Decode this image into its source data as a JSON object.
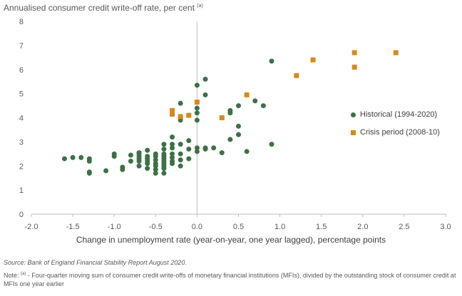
{
  "chart_data": {
    "type": "scatter",
    "title": "Annualised consumer credit write-off rate, per cent",
    "title_note_marker": "(a)",
    "xlabel": "Change in unemployment rate (year-on-year, one year lagged), percentage points",
    "ylabel": "",
    "xlim": [
      -2.0,
      3.0
    ],
    "ylim": [
      0,
      8
    ],
    "xticks": [
      "-2.0",
      "-1.5",
      "-1.0",
      "-0.5",
      "0.0",
      "0.5",
      "1.0",
      "1.5",
      "2.0",
      "2.5",
      "3.0"
    ],
    "yticks": [
      "0",
      "1",
      "2",
      "3",
      "4",
      "5",
      "6",
      "7",
      "8"
    ],
    "grid": false,
    "legend_position": "right",
    "series": [
      {
        "name": "Historical (1994-2020)",
        "marker": "circle",
        "color": "#3e7047",
        "points": [
          [
            -1.6,
            2.3
          ],
          [
            -1.5,
            2.35
          ],
          [
            -1.4,
            2.35
          ],
          [
            -1.3,
            2.3
          ],
          [
            -1.3,
            2.2
          ],
          [
            -1.3,
            1.75
          ],
          [
            -1.3,
            1.7
          ],
          [
            -1.1,
            1.8
          ],
          [
            -1.0,
            2.5
          ],
          [
            -1.0,
            2.4
          ],
          [
            -0.9,
            1.95
          ],
          [
            -0.9,
            1.85
          ],
          [
            -0.8,
            2.45
          ],
          [
            -0.8,
            2.2
          ],
          [
            -0.7,
            2.5
          ],
          [
            -0.7,
            2.4
          ],
          [
            -0.7,
            2.3
          ],
          [
            -0.7,
            2.2
          ],
          [
            -0.7,
            2.0
          ],
          [
            -0.7,
            2.55
          ],
          [
            -0.6,
            2.65
          ],
          [
            -0.6,
            2.4
          ],
          [
            -0.6,
            2.3
          ],
          [
            -0.6,
            2.2
          ],
          [
            -0.6,
            2.1
          ],
          [
            -0.6,
            1.9
          ],
          [
            -0.5,
            2.4
          ],
          [
            -0.5,
            2.25
          ],
          [
            -0.5,
            2.1
          ],
          [
            -0.5,
            2.0
          ],
          [
            -0.5,
            1.85
          ],
          [
            -0.5,
            1.7
          ],
          [
            -0.5,
            2.5
          ],
          [
            -0.4,
            2.9
          ],
          [
            -0.4,
            2.7
          ],
          [
            -0.4,
            2.5
          ],
          [
            -0.4,
            2.4
          ],
          [
            -0.4,
            2.3
          ],
          [
            -0.4,
            2.2
          ],
          [
            -0.4,
            2.1
          ],
          [
            -0.4,
            2.0
          ],
          [
            -0.4,
            1.9
          ],
          [
            -0.4,
            1.7
          ],
          [
            -0.3,
            3.2
          ],
          [
            -0.3,
            2.9
          ],
          [
            -0.3,
            2.75
          ],
          [
            -0.3,
            2.5
          ],
          [
            -0.3,
            2.35
          ],
          [
            -0.3,
            2.2
          ],
          [
            -0.3,
            2.1
          ],
          [
            -0.2,
            4.6
          ],
          [
            -0.2,
            3.9
          ],
          [
            -0.2,
            2.9
          ],
          [
            -0.2,
            2.5
          ],
          [
            -0.2,
            2.25
          ],
          [
            -0.2,
            2.0
          ],
          [
            -0.1,
            4.1
          ],
          [
            -0.1,
            3.05
          ],
          [
            -0.1,
            2.7
          ],
          [
            -0.1,
            2.3
          ],
          [
            0.0,
            5.35
          ],
          [
            0.0,
            4.4
          ],
          [
            0.0,
            4.2
          ],
          [
            0.0,
            3.9
          ],
          [
            0.0,
            2.75
          ],
          [
            0.0,
            2.6
          ],
          [
            0.1,
            5.6
          ],
          [
            0.1,
            4.95
          ],
          [
            0.1,
            2.75
          ],
          [
            0.1,
            2.7
          ],
          [
            0.2,
            2.75
          ],
          [
            0.3,
            2.55
          ],
          [
            0.4,
            4.3
          ],
          [
            0.4,
            4.2
          ],
          [
            0.4,
            3.1
          ],
          [
            0.5,
            4.5
          ],
          [
            0.5,
            3.65
          ],
          [
            0.5,
            3.3
          ],
          [
            0.6,
            2.6
          ],
          [
            0.7,
            4.7
          ],
          [
            0.8,
            4.5
          ],
          [
            0.9,
            6.35
          ],
          [
            0.9,
            2.9
          ]
        ]
      },
      {
        "name": "Crisis period (2008-10)",
        "marker": "square",
        "color": "#d58a1b",
        "points": [
          [
            -0.3,
            4.3
          ],
          [
            -0.3,
            4.15
          ],
          [
            -0.2,
            4.05
          ],
          [
            -0.1,
            4.1
          ],
          [
            0.0,
            4.65
          ],
          [
            0.3,
            4.0
          ],
          [
            0.6,
            4.95
          ],
          [
            1.2,
            5.75
          ],
          [
            1.4,
            6.4
          ],
          [
            1.9,
            6.7
          ],
          [
            1.9,
            6.1
          ],
          [
            2.4,
            6.7
          ]
        ]
      }
    ]
  },
  "notes": {
    "source": "Source: Bank of England Financial Stability Report August 2020.",
    "note_prefix": "Note: ",
    "note_marker": "(a)",
    "note_text": " - Four-quarter moving sum of consumer credit write-offs of monetary financial institutions (MFIs), divided by the outstanding stock of consumer credit at MFIs one year earlier"
  }
}
